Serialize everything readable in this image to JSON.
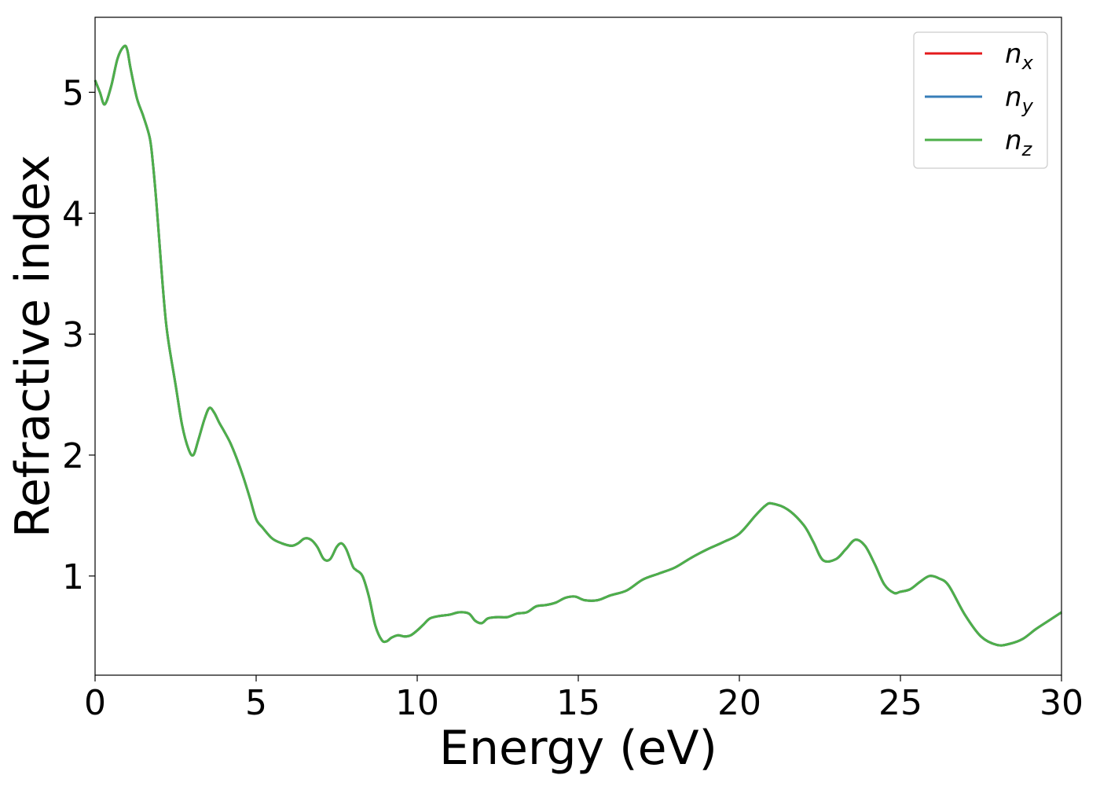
{
  "chart_data": {
    "type": "line",
    "xlabel": "Energy (eV)",
    "ylabel": "Refractive index",
    "xlim": [
      0,
      30
    ],
    "ylim": [
      0.18,
      5.62
    ],
    "xticks": [
      0,
      5,
      10,
      15,
      20,
      25,
      30
    ],
    "yticks": [
      1,
      2,
      3,
      4,
      5
    ],
    "grid": false,
    "legend_position": "top-right",
    "series": [
      {
        "name": "n_x",
        "symbol": "n",
        "subscript": "x",
        "color": "#e41a1c"
      },
      {
        "name": "n_y",
        "symbol": "n",
        "subscript": "y",
        "color": "#377eb8"
      },
      {
        "name": "n_z",
        "symbol": "n",
        "subscript": "z",
        "color": "#4daf4a"
      }
    ],
    "x": [
      0,
      0.15,
      0.3,
      0.5,
      0.7,
      0.9,
      1.0,
      1.1,
      1.3,
      1.5,
      1.7,
      1.8,
      1.9,
      2.0,
      2.1,
      2.2,
      2.3,
      2.5,
      2.7,
      2.9,
      3.05,
      3.2,
      3.4,
      3.55,
      3.7,
      3.85,
      4.0,
      4.2,
      4.4,
      4.6,
      4.8,
      5.0,
      5.2,
      5.5,
      5.8,
      6.1,
      6.3,
      6.5,
      6.7,
      6.9,
      7.1,
      7.3,
      7.5,
      7.65,
      7.8,
      8.0,
      8.1,
      8.3,
      8.5,
      8.7,
      8.9,
      9.05,
      9.2,
      9.4,
      9.6,
      9.8,
      10.0,
      10.2,
      10.4,
      10.7,
      11.0,
      11.3,
      11.6,
      11.8,
      12.0,
      12.2,
      12.5,
      12.8,
      13.1,
      13.4,
      13.7,
      14.0,
      14.3,
      14.6,
      14.9,
      15.2,
      15.6,
      16.0,
      16.5,
      17.0,
      17.5,
      18.0,
      18.5,
      19.0,
      19.5,
      20.0,
      20.5,
      20.8,
      21.0,
      21.5,
      22.0,
      22.3,
      22.6,
      23.0,
      23.3,
      23.6,
      23.9,
      24.2,
      24.5,
      24.8,
      25.0,
      25.3,
      25.6,
      25.9,
      26.2,
      26.5,
      27.0,
      27.5,
      28.0,
      28.4,
      28.8,
      29.2,
      29.6,
      30.0
    ],
    "values": [
      5.1,
      5.0,
      4.9,
      5.05,
      5.28,
      5.38,
      5.35,
      5.2,
      4.95,
      4.8,
      4.62,
      4.4,
      4.1,
      3.75,
      3.4,
      3.1,
      2.9,
      2.58,
      2.25,
      2.05,
      2.0,
      2.12,
      2.3,
      2.39,
      2.35,
      2.27,
      2.2,
      2.1,
      1.97,
      1.82,
      1.65,
      1.47,
      1.4,
      1.31,
      1.27,
      1.25,
      1.27,
      1.31,
      1.3,
      1.24,
      1.14,
      1.14,
      1.24,
      1.27,
      1.22,
      1.08,
      1.05,
      1.0,
      0.83,
      0.59,
      0.47,
      0.46,
      0.49,
      0.51,
      0.5,
      0.51,
      0.55,
      0.6,
      0.65,
      0.67,
      0.68,
      0.7,
      0.69,
      0.63,
      0.61,
      0.65,
      0.66,
      0.66,
      0.69,
      0.7,
      0.75,
      0.76,
      0.78,
      0.82,
      0.83,
      0.8,
      0.8,
      0.84,
      0.88,
      0.97,
      1.02,
      1.07,
      1.15,
      1.22,
      1.28,
      1.35,
      1.5,
      1.58,
      1.6,
      1.55,
      1.42,
      1.28,
      1.13,
      1.14,
      1.22,
      1.3,
      1.25,
      1.1,
      0.93,
      0.86,
      0.87,
      0.89,
      0.95,
      1.0,
      0.98,
      0.92,
      0.68,
      0.5,
      0.43,
      0.44,
      0.48,
      0.56,
      0.63,
      0.7
    ]
  }
}
